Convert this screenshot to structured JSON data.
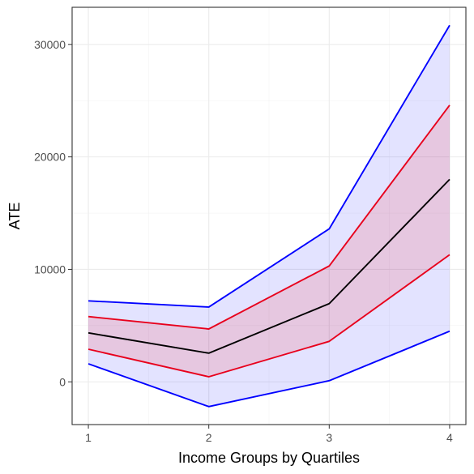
{
  "chart_data": {
    "type": "line",
    "title": "",
    "xlabel": "Income Groups by Quartiles",
    "ylabel": "ATE",
    "x": [
      1,
      2,
      3,
      4
    ],
    "xticks": [
      "1",
      "2",
      "3",
      "4"
    ],
    "yticks": [
      0,
      10000,
      20000,
      30000
    ],
    "ytick_labels": [
      "0",
      "10000",
      "20000",
      "30000"
    ],
    "xlim": [
      0.865,
      4.135
    ],
    "ylim": [
      -3800,
      33300
    ],
    "grid": true,
    "legend": "none",
    "series": [
      {
        "role": "outer-upper",
        "color": "#0000ff",
        "values": [
          7200,
          6650,
          13600,
          31700
        ]
      },
      {
        "role": "inner-upper",
        "color": "#e8001c",
        "values": [
          5800,
          4700,
          10300,
          24600
        ]
      },
      {
        "role": "estimate",
        "color": "#000000",
        "values": [
          4350,
          2550,
          6950,
          18000
        ]
      },
      {
        "role": "inner-lower",
        "color": "#e8001c",
        "values": [
          2900,
          450,
          3600,
          11300
        ]
      },
      {
        "role": "outer-lower",
        "color": "#0000ff",
        "values": [
          1600,
          -2200,
          100,
          4500
        ]
      }
    ],
    "bands": [
      {
        "lower": "outer-lower",
        "upper": "outer-upper",
        "fill": "#0000ff",
        "opacity": 0.11
      },
      {
        "lower": "inner-lower",
        "upper": "inner-upper",
        "fill": "#ff0000",
        "opacity": 0.12
      }
    ]
  }
}
